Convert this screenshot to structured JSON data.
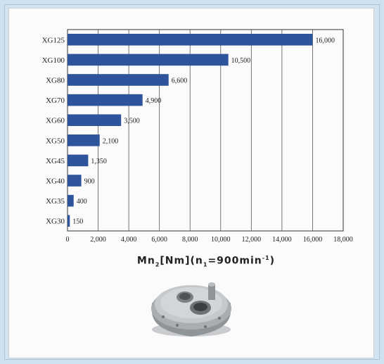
{
  "chart_data": {
    "type": "bar",
    "orientation": "horizontal",
    "categories": [
      "XG125",
      "XG100",
      "XG80",
      "XG70",
      "XG60",
      "XG50",
      "XG45",
      "XG40",
      "XG35",
      "XG30"
    ],
    "values": [
      16000,
      10500,
      6600,
      4900,
      3500,
      2100,
      1350,
      900,
      400,
      150
    ],
    "data_labels": [
      "16,000",
      "10,500",
      "6,600",
      "4,900",
      "3,500",
      "2,100",
      "1,350",
      "900",
      "400",
      "150"
    ],
    "xticks": [
      "0",
      "2,000",
      "4,000",
      "6,000",
      "8,000",
      "10,000",
      "12,000",
      "14,000",
      "16,000",
      "18,000"
    ],
    "xlim": [
      0,
      18000
    ],
    "grid": true,
    "bar_color": "#2e549b",
    "xlabel": {
      "base1": "Mn",
      "sub1": "2",
      "mid": "[Nm](n",
      "sub2": "1",
      "mid2": "=900min",
      "sup": "-1",
      "end": ")"
    }
  },
  "product_image": "gear-reducer-photo"
}
